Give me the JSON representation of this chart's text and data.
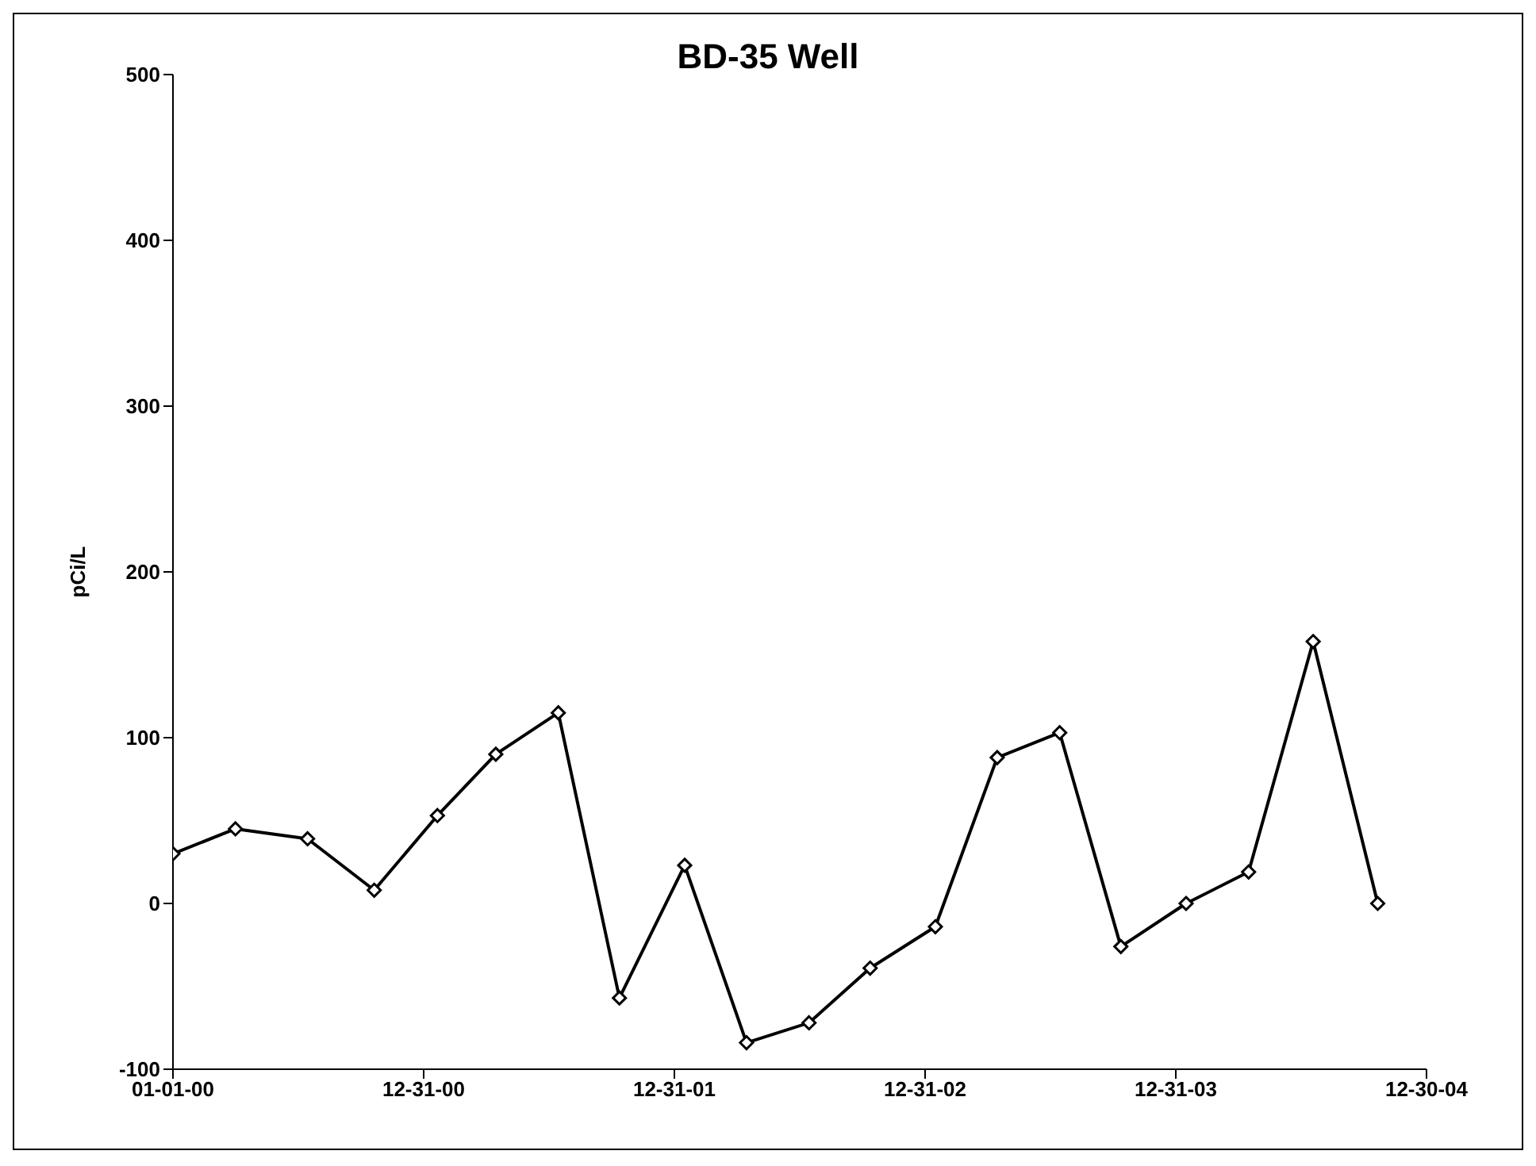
{
  "chart_data": {
    "type": "line",
    "title": "BD-35 Well",
    "ylabel": "pCi/L",
    "x": [
      "2000-01-01",
      "2000-04-01",
      "2000-07-15",
      "2000-10-20",
      "2001-01-20",
      "2001-04-15",
      "2001-07-15",
      "2001-10-12",
      "2002-01-15",
      "2002-04-15",
      "2002-07-15",
      "2002-10-12",
      "2003-01-15",
      "2003-04-15",
      "2003-07-15",
      "2003-10-12",
      "2004-01-15",
      "2004-04-15",
      "2004-07-18",
      "2004-10-20"
    ],
    "series": [
      {
        "color": "#000000",
        "values": [
          30,
          45,
          39,
          8,
          53,
          90,
          115,
          -57,
          23,
          -84,
          -72,
          -39,
          -14,
          88,
          103,
          -26,
          0,
          19,
          158,
          0
        ]
      }
    ],
    "xlim": [
      "2000-01-01",
      "2004-12-30"
    ],
    "xticks": [
      {
        "value": "2000-01-01",
        "label": "01-01-00"
      },
      {
        "value": "2000-12-31",
        "label": "12-31-00"
      },
      {
        "value": "2001-12-31",
        "label": "12-31-01"
      },
      {
        "value": "2002-12-31",
        "label": "12-31-02"
      },
      {
        "value": "2003-12-31",
        "label": "12-31-03"
      },
      {
        "value": "2004-12-30",
        "label": "12-30-04"
      }
    ],
    "ylim": [
      -100,
      500
    ],
    "yticks": [
      -100,
      0,
      100,
      200,
      300,
      400,
      500
    ],
    "grid": false,
    "legend": false,
    "marker": "diamond",
    "line_style": "solid"
  }
}
